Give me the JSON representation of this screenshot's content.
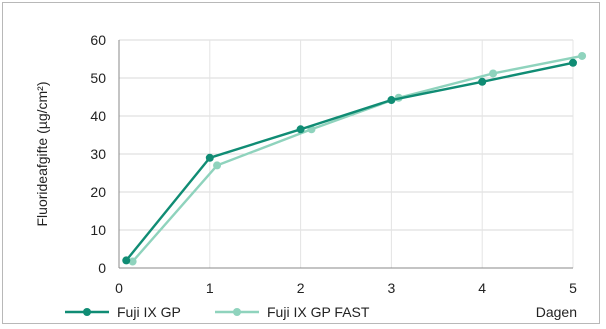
{
  "chart_data": {
    "type": "line",
    "title": "",
    "xlabel": "Dagen",
    "ylabel": "Fluorideafgifte (µg/cm²)",
    "xlim": [
      0,
      5
    ],
    "ylim": [
      0,
      60
    ],
    "x_ticks": [
      "0",
      "1",
      "2",
      "3",
      "4",
      "5"
    ],
    "y_ticks": [
      "0",
      "10",
      "20",
      "30",
      "40",
      "50",
      "60"
    ],
    "grid": "horizontal",
    "legend_position": "bottom",
    "series": [
      {
        "name": "Fuji IX GP",
        "color": "#108c74",
        "x": [
          0.08,
          1,
          2,
          3,
          4,
          5
        ],
        "y": [
          2,
          29,
          36.5,
          44.2,
          49,
          54
        ]
      },
      {
        "name": "Fuji IX GP FAST",
        "color": "#8fd3bd",
        "x": [
          0.15,
          1.08,
          2.12,
          3.08,
          4.12,
          5.1
        ],
        "y": [
          1.7,
          27,
          36.5,
          44.8,
          51.2,
          55.8
        ]
      }
    ]
  }
}
